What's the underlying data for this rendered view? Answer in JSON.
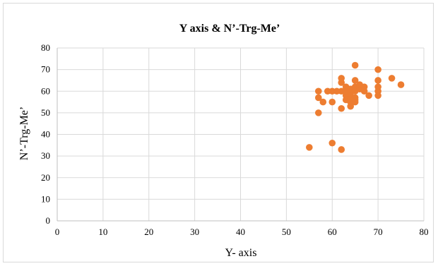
{
  "chart_data": {
    "type": "scatter",
    "title": "Y axis & N’-Trg-Me’",
    "xlabel": "Y- axis",
    "ylabel": "N’-Trg-Me’",
    "xlim": [
      0,
      80
    ],
    "ylim": [
      0,
      80
    ],
    "xticks": [
      0,
      10,
      20,
      30,
      40,
      50,
      60,
      70,
      80
    ],
    "yticks": [
      0,
      10,
      20,
      30,
      40,
      50,
      60,
      70,
      80
    ],
    "grid": true,
    "legend": "none",
    "marker_color": "#ed7d31",
    "series": [
      {
        "points": [
          [
            55,
            34
          ],
          [
            60,
            36
          ],
          [
            62,
            33
          ],
          [
            57,
            50
          ],
          [
            57,
            57
          ],
          [
            57,
            60
          ],
          [
            58,
            55
          ],
          [
            59,
            60
          ],
          [
            60,
            55
          ],
          [
            60,
            60
          ],
          [
            61,
            60
          ],
          [
            62,
            52
          ],
          [
            62,
            60
          ],
          [
            62,
            64
          ],
          [
            62,
            66
          ],
          [
            63,
            56
          ],
          [
            63,
            58
          ],
          [
            63,
            60
          ],
          [
            63,
            62
          ],
          [
            64,
            53
          ],
          [
            64,
            55
          ],
          [
            64,
            57
          ],
          [
            64,
            59
          ],
          [
            64,
            61
          ],
          [
            65,
            55
          ],
          [
            65,
            56
          ],
          [
            65,
            57
          ],
          [
            65,
            60
          ],
          [
            65,
            62
          ],
          [
            65,
            65
          ],
          [
            65,
            72
          ],
          [
            66,
            61
          ],
          [
            66,
            63
          ],
          [
            67,
            62
          ],
          [
            67,
            60
          ],
          [
            68,
            58
          ],
          [
            70,
            58
          ],
          [
            70,
            60
          ],
          [
            70,
            62
          ],
          [
            70,
            65
          ],
          [
            70,
            70
          ],
          [
            73,
            66
          ],
          [
            75,
            63
          ]
        ]
      }
    ]
  }
}
